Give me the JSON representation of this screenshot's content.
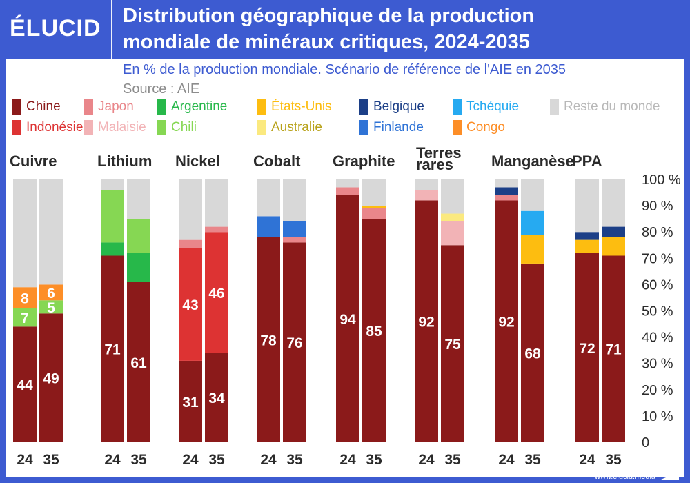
{
  "header": {
    "logo_text": "ÉLUCID",
    "title_line1": "Distribution géographique de la production",
    "title_line2": "mondiale de minéraux critiques, 2024-2035",
    "subtitle": "En % de la production mondiale. Scénario de référence de l'AIE en 2035",
    "source": "Source : AIE"
  },
  "footer": {
    "url": "www.elucid.media"
  },
  "colors": {
    "brand": "#3d5bd1",
    "Chine": "#8b1a1a",
    "Japon": "#e9868a",
    "Argentine": "#27b84a",
    "États-Unis": "#fdbd10",
    "Belgique": "#1c3f87",
    "Tchéquie": "#26aaf1",
    "Reste du monde": "#d8d8d8",
    "Indonésie": "#dd3333",
    "Malaisie": "#f2b3b6",
    "Chili": "#86d753",
    "Australie": "#fbe97f",
    "Finlande": "#2f73d6",
    "Congo": "#fd8e27"
  },
  "legend": {
    "row1": [
      "Chine",
      "Japon",
      "Argentine",
      "États-Unis",
      "Belgique",
      "Tchéquie",
      "Reste du monde"
    ],
    "row2": [
      "Indonésie",
      "Malaisie",
      "Chili",
      "Australie",
      "Finlande",
      "Congo"
    ]
  },
  "chart_data": {
    "type": "bar",
    "stacked": true,
    "ylim": [
      0,
      100
    ],
    "yticks": [
      "0",
      "10 %",
      "20 %",
      "30 %",
      "40 %",
      "50 %",
      "60 %",
      "70 %",
      "80 %",
      "90 %",
      "100 %"
    ],
    "year_labels": [
      "24",
      "35"
    ],
    "minerals": [
      {
        "name": "Cuivre",
        "bars": [
          {
            "segments": [
              [
                "Chine",
                44
              ],
              [
                "Chili",
                7
              ],
              [
                "Congo",
                8
              ],
              [
                "Reste du monde",
                41
              ]
            ],
            "labels": [
              "44",
              "7",
              "8"
            ]
          },
          {
            "segments": [
              [
                "Chine",
                49
              ],
              [
                "Chili",
                5
              ],
              [
                "Congo",
                6
              ],
              [
                "Reste du monde",
                40
              ]
            ],
            "labels": [
              "49",
              "5",
              "6"
            ]
          }
        ]
      },
      {
        "name": "Lithium",
        "bars": [
          {
            "segments": [
              [
                "Chine",
                71
              ],
              [
                "Argentine",
                5
              ],
              [
                "Chili",
                20
              ],
              [
                "Reste du monde",
                4
              ]
            ],
            "labels": [
              "71",
              "",
              "",
              ""
            ]
          },
          {
            "segments": [
              [
                "Chine",
                61
              ],
              [
                "Argentine",
                11
              ],
              [
                "Chili",
                13
              ],
              [
                "Reste du monde",
                15
              ]
            ],
            "labels": [
              "61",
              "",
              "",
              ""
            ]
          }
        ]
      },
      {
        "name": "Nickel",
        "bars": [
          {
            "segments": [
              [
                "Chine",
                31
              ],
              [
                "Indonésie",
                43
              ],
              [
                "Japon",
                3
              ],
              [
                "Reste du monde",
                23
              ]
            ],
            "labels": [
              "31",
              "43",
              ""
            ]
          },
          {
            "segments": [
              [
                "Chine",
                34
              ],
              [
                "Indonésie",
                46
              ],
              [
                "Japon",
                2
              ],
              [
                "Reste du monde",
                18
              ]
            ],
            "labels": [
              "34",
              "46",
              ""
            ]
          }
        ]
      },
      {
        "name": "Cobalt",
        "bars": [
          {
            "segments": [
              [
                "Chine",
                78
              ],
              [
                "Finlande",
                8
              ],
              [
                "Reste du monde",
                14
              ]
            ],
            "labels": [
              "78",
              ""
            ]
          },
          {
            "segments": [
              [
                "Chine",
                76
              ],
              [
                "Japon",
                2
              ],
              [
                "Finlande",
                6
              ],
              [
                "Reste du monde",
                16
              ]
            ],
            "labels": [
              "76",
              ""
            ]
          }
        ]
      },
      {
        "name": "Graphite",
        "bars": [
          {
            "segments": [
              [
                "Chine",
                94
              ],
              [
                "Japon",
                3
              ],
              [
                "Reste du monde",
                3
              ]
            ],
            "labels": [
              "94",
              ""
            ]
          },
          {
            "segments": [
              [
                "Chine",
                85
              ],
              [
                "Japon",
                4
              ],
              [
                "États-Unis",
                1
              ],
              [
                "Reste du monde",
                10
              ]
            ],
            "labels": [
              "85",
              ""
            ]
          }
        ]
      },
      {
        "name": "Terres rares",
        "bars": [
          {
            "segments": [
              [
                "Chine",
                92
              ],
              [
                "Malaisie",
                4
              ],
              [
                "Reste du monde",
                4
              ]
            ],
            "labels": [
              "92",
              ""
            ]
          },
          {
            "segments": [
              [
                "Chine",
                75
              ],
              [
                "Malaisie",
                9
              ],
              [
                "Australie",
                3
              ],
              [
                "Reste du monde",
                13
              ]
            ],
            "labels": [
              "75",
              ""
            ]
          }
        ]
      },
      {
        "name": "Manganèse",
        "bars": [
          {
            "segments": [
              [
                "Chine",
                92
              ],
              [
                "Japon",
                2
              ],
              [
                "Belgique",
                3
              ],
              [
                "Reste du monde",
                3
              ]
            ],
            "labels": [
              "92",
              ""
            ]
          },
          {
            "segments": [
              [
                "Chine",
                68
              ],
              [
                "États-Unis",
                11
              ],
              [
                "Tchéquie",
                9
              ],
              [
                "Reste du monde",
                12
              ]
            ],
            "labels": [
              "68",
              ""
            ]
          }
        ]
      },
      {
        "name": "PPA",
        "bars": [
          {
            "segments": [
              [
                "Chine",
                72
              ],
              [
                "États-Unis",
                5
              ],
              [
                "Belgique",
                3
              ],
              [
                "Reste du monde",
                20
              ]
            ],
            "labels": [
              "72",
              ""
            ]
          },
          {
            "segments": [
              [
                "Chine",
                71
              ],
              [
                "États-Unis",
                7
              ],
              [
                "Belgique",
                4
              ],
              [
                "Reste du monde",
                18
              ]
            ],
            "labels": [
              "71",
              ""
            ]
          }
        ]
      }
    ]
  }
}
